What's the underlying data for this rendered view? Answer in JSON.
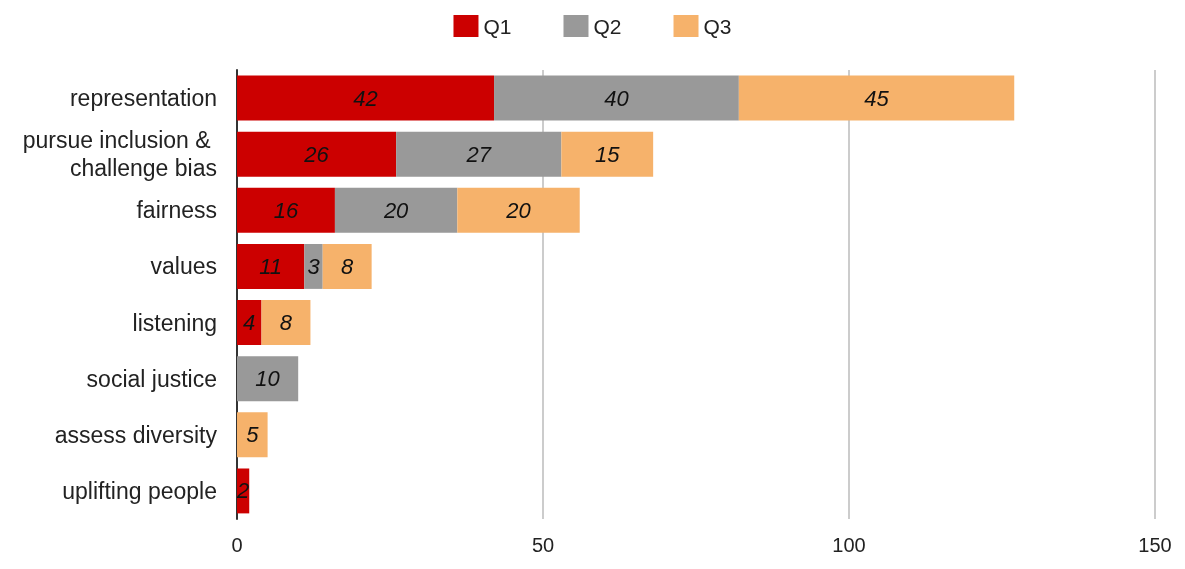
{
  "chart_data": {
    "type": "bar",
    "orientation": "horizontal",
    "stacked": true,
    "categories": [
      "representation",
      "pursue inclusion & challenge bias",
      "fairness",
      "values",
      "listening",
      "social justice",
      "assess diversity",
      "uplifting people"
    ],
    "series": [
      {
        "name": "Q1",
        "color": "#cc0000",
        "values": [
          42,
          26,
          16,
          11,
          4,
          null,
          null,
          2
        ]
      },
      {
        "name": "Q2",
        "color": "#999999",
        "values": [
          40,
          27,
          20,
          3,
          null,
          10,
          null,
          null
        ]
      },
      {
        "name": "Q3",
        "color": "#f6b26b",
        "values": [
          45,
          15,
          20,
          8,
          8,
          null,
          5,
          null
        ]
      }
    ],
    "xlim": [
      0,
      150
    ],
    "xticks": [
      0,
      50,
      100,
      150
    ],
    "grid": "x",
    "legend": "top",
    "data_labels": true
  }
}
